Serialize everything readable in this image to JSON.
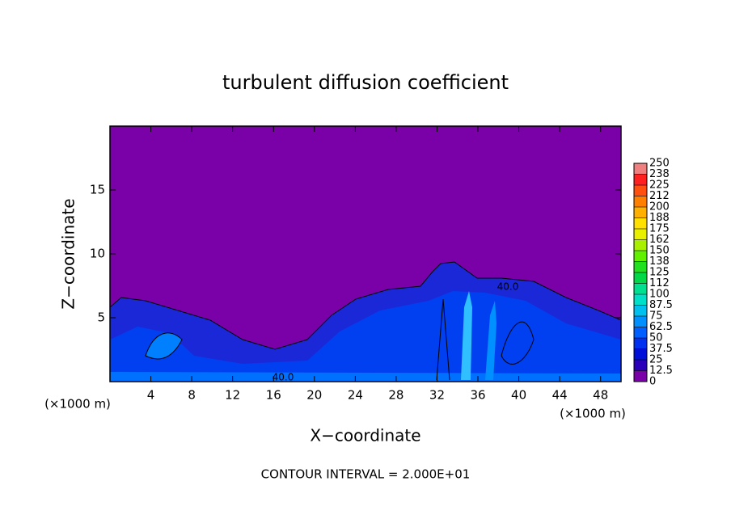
{
  "chart_data": {
    "type": "contour",
    "title": "turbulent diffusion coefficient",
    "xlabel": "X−coordinate",
    "ylabel": "Z−coordinate",
    "unit_labels": [
      "(×1000 m)",
      "(×1000 m)"
    ],
    "footnote": "CONTOUR INTERVAL = 2.000E+01",
    "contour_labels": [
      "40.0",
      "40.0"
    ],
    "xlim": [
      0,
      50
    ],
    "xticks": [
      4,
      8,
      12,
      16,
      20,
      24,
      28,
      32,
      36,
      40,
      44,
      48
    ],
    "ylim": [
      0,
      20
    ],
    "yticks": [
      5,
      10,
      15
    ],
    "colorbar": {
      "levels": [
        0,
        12.5,
        25,
        37.5,
        50,
        62.5,
        75,
        87.5,
        100,
        {
          "value": 112.5,
          "label": "112"
        },
        125,
        {
          "value": 137.5,
          "label": "138"
        },
        150,
        {
          "value": 162.5,
          "label": "162"
        },
        175,
        {
          "value": 187.5,
          "label": "188"
        },
        200,
        {
          "value": 212.5,
          "label": "212"
        },
        225,
        {
          "value": 237.5,
          "label": "238"
        },
        250
      ],
      "colors": [
        "#7a00a8",
        "#2a00b8",
        "#0010d8",
        "#0030f0",
        "#0060ff",
        "#0090ff",
        "#00c0f0",
        "#00e0c8",
        "#00e090",
        "#00d848",
        "#20e020",
        "#60f000",
        "#a8f000",
        "#e8f000",
        "#ffe000",
        "#ffb000",
        "#ff8000",
        "#ff5010",
        "#ff2020",
        "#f08080"
      ]
    }
  }
}
